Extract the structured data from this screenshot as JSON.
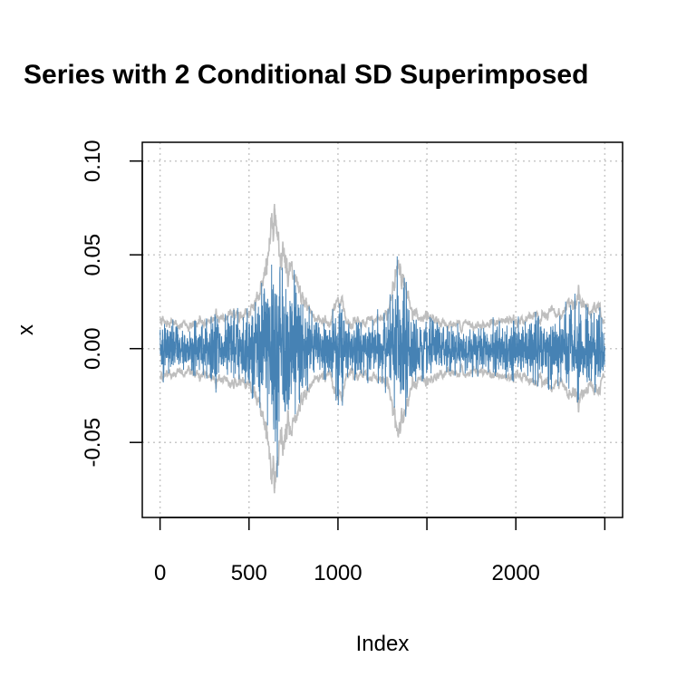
{
  "chart_data": {
    "type": "line",
    "title": "Series with 2 Conditional SD Superimposed",
    "xlabel": "Index",
    "ylabel": "x",
    "xlim": [
      -100,
      2600
    ],
    "ylim": [
      -0.09,
      0.11
    ],
    "x_ticks": [
      {
        "value": 0,
        "label": "0"
      },
      {
        "value": 500,
        "label": "500"
      },
      {
        "value": 1000,
        "label": "1000"
      },
      {
        "value": 1500,
        "label": ""
      },
      {
        "value": 2000,
        "label": "2000"
      },
      {
        "value": 2500,
        "label": ""
      }
    ],
    "y_ticks": [
      {
        "value": -0.05,
        "label": "-0.05"
      },
      {
        "value": 0.0,
        "label": "0.00"
      },
      {
        "value": 0.05,
        "label": "0.05"
      },
      {
        "value": 0.1,
        "label": "0.10"
      }
    ],
    "grid": true,
    "n_points": 2500,
    "series": [
      {
        "role": "series",
        "color": "#4682B4",
        "volatility_profile": [
          {
            "x": 0,
            "v": 0.016
          },
          {
            "x": 100,
            "v": 0.012
          },
          {
            "x": 200,
            "v": 0.013
          },
          {
            "x": 300,
            "v": 0.016
          },
          {
            "x": 400,
            "v": 0.018
          },
          {
            "x": 480,
            "v": 0.02
          },
          {
            "x": 540,
            "v": 0.024
          },
          {
            "x": 580,
            "v": 0.035
          },
          {
            "x": 620,
            "v": 0.065
          },
          {
            "x": 640,
            "v": 0.075
          },
          {
            "x": 670,
            "v": 0.05
          },
          {
            "x": 720,
            "v": 0.045
          },
          {
            "x": 760,
            "v": 0.03
          },
          {
            "x": 850,
            "v": 0.018
          },
          {
            "x": 950,
            "v": 0.013
          },
          {
            "x": 1000,
            "v": 0.028
          },
          {
            "x": 1050,
            "v": 0.015
          },
          {
            "x": 1150,
            "v": 0.014
          },
          {
            "x": 1250,
            "v": 0.016
          },
          {
            "x": 1300,
            "v": 0.028
          },
          {
            "x": 1340,
            "v": 0.045
          },
          {
            "x": 1390,
            "v": 0.025
          },
          {
            "x": 1450,
            "v": 0.016
          },
          {
            "x": 1600,
            "v": 0.013
          },
          {
            "x": 1800,
            "v": 0.013
          },
          {
            "x": 2000,
            "v": 0.015
          },
          {
            "x": 2150,
            "v": 0.017
          },
          {
            "x": 2250,
            "v": 0.018
          },
          {
            "x": 2350,
            "v": 0.027
          },
          {
            "x": 2400,
            "v": 0.02
          },
          {
            "x": 2460,
            "v": 0.024
          },
          {
            "x": 2500,
            "v": 0.012
          }
        ]
      },
      {
        "role": "upper_sd",
        "color": "#BEBEBE"
      },
      {
        "role": "lower_sd",
        "color": "#BEBEBE"
      }
    ],
    "sd_multiplier": 2
  }
}
